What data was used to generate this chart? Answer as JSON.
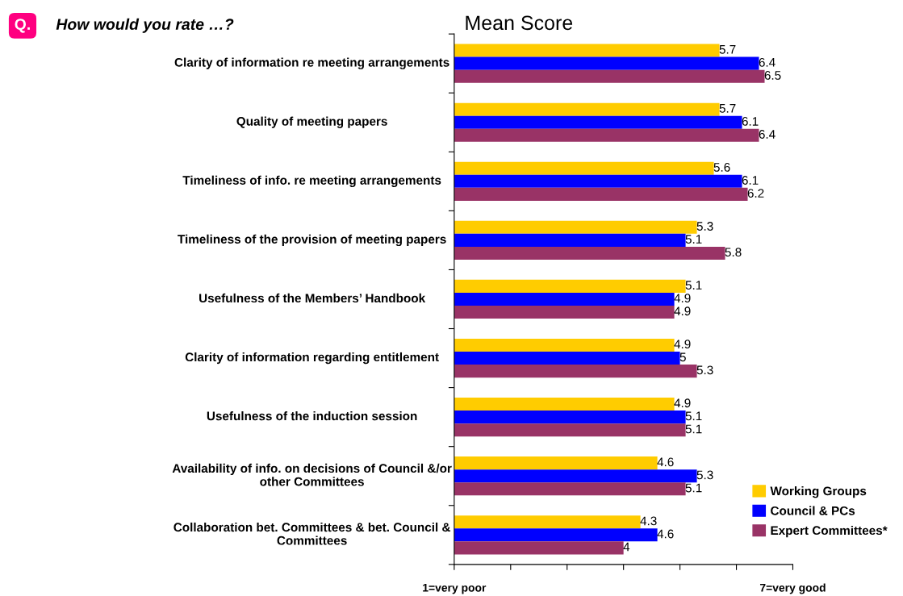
{
  "chart_data": {
    "type": "bar",
    "orientation": "horizontal",
    "title": "How would you rate …?",
    "subtitle": "Mean Score",
    "annotations": [
      "Q."
    ],
    "categories": [
      "Clarity of information re meeting arrangements",
      "Quality of meeting papers",
      "Timeliness of info. re meeting arrangements",
      "Timeliness of the provision of meeting papers",
      "Usefulness of the Members’ Handbook",
      "Clarity of information regarding entitlement",
      "Usefulness of the induction session",
      "Availability of info. on decisions of Council &/or\nother Committees",
      "Collaboration bet. Committees & bet. Council &\nCommittees"
    ],
    "series": [
      {
        "name": "Working Groups",
        "color": "#ffcc00",
        "values": [
          5.7,
          5.7,
          5.6,
          5.3,
          5.1,
          4.9,
          4.9,
          4.6,
          4.3
        ]
      },
      {
        "name": "Council & PCs",
        "color": "#0000ff",
        "values": [
          6.4,
          6.1,
          6.1,
          5.1,
          4.9,
          5,
          5.1,
          5.3,
          4.6
        ]
      },
      {
        "name": "Expert Committees*",
        "color": "#993366",
        "values": [
          6.5,
          6.4,
          6.2,
          5.8,
          4.9,
          5.3,
          5.1,
          5.1,
          4
        ]
      }
    ],
    "xlim": [
      1,
      7
    ],
    "xticks": [
      {
        "value": 1,
        "label": "1=very poor"
      },
      {
        "value": 2,
        "label": null
      },
      {
        "value": 3,
        "label": null
      },
      {
        "value": 4,
        "label": null
      },
      {
        "value": 5,
        "label": null
      },
      {
        "value": 6,
        "label": null
      },
      {
        "value": 7,
        "label": "7=very good"
      }
    ],
    "data_labels": true,
    "legend": "bottom right",
    "grid": false
  }
}
